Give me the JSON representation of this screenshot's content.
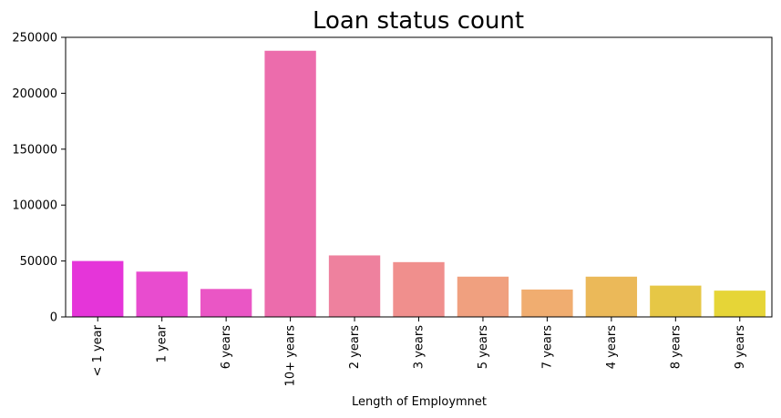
{
  "chart_data": {
    "type": "bar",
    "title": "Loan status count",
    "xlabel": "Length of Employmnet",
    "ylabel": "",
    "categories": [
      "< 1 year",
      "1 year",
      "6 years",
      "10+ years",
      "2 years",
      "3 years",
      "5 years",
      "7 years",
      "4 years",
      "8 years",
      "9 years"
    ],
    "values": [
      50000,
      40500,
      25000,
      238000,
      55000,
      49000,
      36000,
      24500,
      36000,
      28000,
      23500
    ],
    "colors": [
      "#e535d9",
      "#e84ccf",
      "#ea56c5",
      "#ec6cac",
      "#ee819e",
      "#f08f8d",
      "#f0a07f",
      "#f0ad70",
      "#ebb959",
      "#e6c746",
      "#e6d537"
    ],
    "ylim": [
      0,
      250000
    ],
    "yticks": [
      0,
      50000,
      100000,
      150000,
      200000,
      250000
    ],
    "ytick_labels": [
      "0",
      "50000",
      "100000",
      "150000",
      "200000",
      "250000"
    ],
    "grid": false
  }
}
